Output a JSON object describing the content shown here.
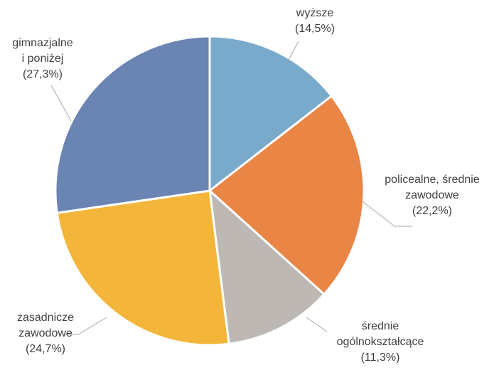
{
  "chart_data": {
    "type": "pie",
    "title": "",
    "slices": [
      {
        "lines": [
          "wyższe"
        ],
        "pct_label": "(14,5%)",
        "value": 14.5,
        "color": "#7aaacb"
      },
      {
        "lines": [
          "policealne, średnie",
          "zawodowe"
        ],
        "pct_label": "(22,2%)",
        "value": 22.2,
        "color": "#e98545"
      },
      {
        "lines": [
          "średnie",
          "ogólnokształcące"
        ],
        "pct_label": "(11,3%)",
        "value": 11.3,
        "color": "#bdb8b4"
      },
      {
        "lines": [
          "zasadnicze",
          "zawodowe"
        ],
        "pct_label": "(24,7%)",
        "value": 24.7,
        "color": "#f3b63a"
      },
      {
        "lines": [
          "gimnazjalne",
          "i poniżej"
        ],
        "pct_label": "(27,3%)",
        "value": 27.3,
        "color": "#6a84b3"
      }
    ],
    "legend": "none",
    "start_angle": "12 o'clock, clockwise"
  }
}
